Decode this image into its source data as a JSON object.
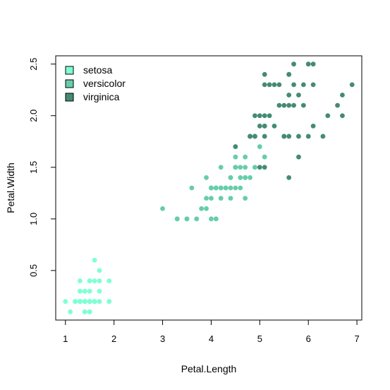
{
  "chart_data": {
    "type": "scatter",
    "title": "",
    "xlabel": "Petal.Length",
    "ylabel": "Petal.Width",
    "xlim": [
      0.8,
      7.1
    ],
    "ylim": [
      0.02,
      2.58
    ],
    "x_ticks": [
      "1",
      "2",
      "3",
      "4",
      "5",
      "6",
      "7"
    ],
    "y_ticks": [
      "0.5",
      "1.0",
      "1.5",
      "2.0",
      "2.5"
    ],
    "legend": {
      "position": "top-left"
    },
    "series": [
      {
        "name": "setosa",
        "color": "#7FFFD4",
        "points": [
          [
            1.4,
            0.2
          ],
          [
            1.4,
            0.2
          ],
          [
            1.3,
            0.2
          ],
          [
            1.5,
            0.2
          ],
          [
            1.4,
            0.2
          ],
          [
            1.7,
            0.4
          ],
          [
            1.4,
            0.3
          ],
          [
            1.5,
            0.2
          ],
          [
            1.4,
            0.2
          ],
          [
            1.5,
            0.1
          ],
          [
            1.5,
            0.2
          ],
          [
            1.6,
            0.2
          ],
          [
            1.4,
            0.1
          ],
          [
            1.1,
            0.1
          ],
          [
            1.2,
            0.2
          ],
          [
            1.5,
            0.4
          ],
          [
            1.3,
            0.4
          ],
          [
            1.4,
            0.3
          ],
          [
            1.7,
            0.3
          ],
          [
            1.5,
            0.3
          ],
          [
            1.7,
            0.2
          ],
          [
            1.5,
            0.4
          ],
          [
            1.0,
            0.2
          ],
          [
            1.7,
            0.5
          ],
          [
            1.9,
            0.2
          ],
          [
            1.6,
            0.2
          ],
          [
            1.6,
            0.4
          ],
          [
            1.5,
            0.2
          ],
          [
            1.4,
            0.2
          ],
          [
            1.6,
            0.2
          ],
          [
            1.6,
            0.2
          ],
          [
            1.5,
            0.4
          ],
          [
            1.5,
            0.1
          ],
          [
            1.4,
            0.2
          ],
          [
            1.5,
            0.2
          ],
          [
            1.2,
            0.2
          ],
          [
            1.3,
            0.2
          ],
          [
            1.4,
            0.1
          ],
          [
            1.3,
            0.2
          ],
          [
            1.5,
            0.2
          ],
          [
            1.3,
            0.3
          ],
          [
            1.3,
            0.3
          ],
          [
            1.3,
            0.2
          ],
          [
            1.6,
            0.6
          ],
          [
            1.9,
            0.4
          ],
          [
            1.4,
            0.3
          ],
          [
            1.6,
            0.2
          ],
          [
            1.4,
            0.2
          ],
          [
            1.5,
            0.2
          ],
          [
            1.4,
            0.2
          ]
        ]
      },
      {
        "name": "versicolor",
        "color": "#66CDAA",
        "points": [
          [
            4.7,
            1.4
          ],
          [
            4.5,
            1.5
          ],
          [
            4.9,
            1.5
          ],
          [
            4.0,
            1.3
          ],
          [
            4.6,
            1.5
          ],
          [
            4.5,
            1.3
          ],
          [
            4.7,
            1.6
          ],
          [
            3.3,
            1.0
          ],
          [
            4.6,
            1.3
          ],
          [
            3.9,
            1.4
          ],
          [
            3.5,
            1.0
          ],
          [
            4.2,
            1.5
          ],
          [
            4.0,
            1.0
          ],
          [
            4.7,
            1.4
          ],
          [
            3.6,
            1.3
          ],
          [
            4.4,
            1.4
          ],
          [
            4.5,
            1.5
          ],
          [
            4.1,
            1.0
          ],
          [
            4.5,
            1.5
          ],
          [
            3.9,
            1.1
          ],
          [
            4.8,
            1.8
          ],
          [
            4.0,
            1.3
          ],
          [
            4.9,
            1.5
          ],
          [
            4.7,
            1.2
          ],
          [
            4.3,
            1.3
          ],
          [
            4.4,
            1.4
          ],
          [
            4.8,
            1.4
          ],
          [
            5.0,
            1.7
          ],
          [
            4.5,
            1.5
          ],
          [
            3.5,
            1.0
          ],
          [
            3.8,
            1.1
          ],
          [
            3.7,
            1.0
          ],
          [
            3.9,
            1.2
          ],
          [
            5.1,
            1.6
          ],
          [
            4.5,
            1.5
          ],
          [
            4.5,
            1.6
          ],
          [
            4.7,
            1.5
          ],
          [
            4.4,
            1.3
          ],
          [
            4.1,
            1.3
          ],
          [
            4.0,
            1.3
          ],
          [
            4.4,
            1.2
          ],
          [
            4.6,
            1.4
          ],
          [
            4.0,
            1.2
          ],
          [
            3.3,
            1.0
          ],
          [
            4.2,
            1.3
          ],
          [
            4.2,
            1.2
          ],
          [
            4.2,
            1.3
          ],
          [
            4.3,
            1.3
          ],
          [
            3.0,
            1.1
          ],
          [
            4.1,
            1.3
          ]
        ]
      },
      {
        "name": "virginica",
        "color": "#458B74",
        "points": [
          [
            6.0,
            2.5
          ],
          [
            5.1,
            1.9
          ],
          [
            5.9,
            2.1
          ],
          [
            5.6,
            1.8
          ],
          [
            5.8,
            2.2
          ],
          [
            6.6,
            2.1
          ],
          [
            4.5,
            1.7
          ],
          [
            6.3,
            1.8
          ],
          [
            5.8,
            1.8
          ],
          [
            6.1,
            2.5
          ],
          [
            5.1,
            2.0
          ],
          [
            5.3,
            1.9
          ],
          [
            5.5,
            2.1
          ],
          [
            5.0,
            2.0
          ],
          [
            5.1,
            2.4
          ],
          [
            5.3,
            2.3
          ],
          [
            5.5,
            1.8
          ],
          [
            6.7,
            2.2
          ],
          [
            6.9,
            2.3
          ],
          [
            5.0,
            1.5
          ],
          [
            5.7,
            2.3
          ],
          [
            4.9,
            2.0
          ],
          [
            6.7,
            2.0
          ],
          [
            4.9,
            1.8
          ],
          [
            5.7,
            2.1
          ],
          [
            6.0,
            1.8
          ],
          [
            4.8,
            1.8
          ],
          [
            4.9,
            1.8
          ],
          [
            5.6,
            2.1
          ],
          [
            5.8,
            1.6
          ],
          [
            6.1,
            1.9
          ],
          [
            6.4,
            2.0
          ],
          [
            5.6,
            2.2
          ],
          [
            5.1,
            1.5
          ],
          [
            5.6,
            1.4
          ],
          [
            6.1,
            2.3
          ],
          [
            5.6,
            2.4
          ],
          [
            5.5,
            1.8
          ],
          [
            4.8,
            1.8
          ],
          [
            5.4,
            2.1
          ],
          [
            5.6,
            2.4
          ],
          [
            5.1,
            2.3
          ],
          [
            5.1,
            1.9
          ],
          [
            5.9,
            2.3
          ],
          [
            5.7,
            2.5
          ],
          [
            5.2,
            2.3
          ],
          [
            5.0,
            1.9
          ],
          [
            5.2,
            2.0
          ],
          [
            5.4,
            2.3
          ],
          [
            5.1,
            1.8
          ]
        ]
      }
    ]
  }
}
